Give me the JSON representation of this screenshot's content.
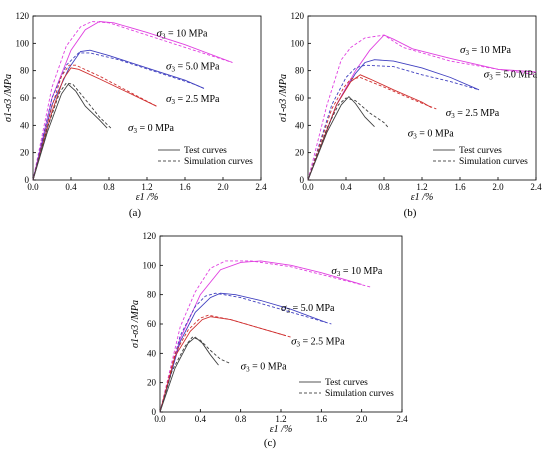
{
  "chart_data": [
    {
      "type": "line",
      "panel_label": "(a)",
      "xlabel": "ε1 /%",
      "ylabel": "σ1-σ3 /MPa",
      "xlim": [
        0,
        2.4
      ],
      "ylim": [
        0,
        120
      ],
      "xticks": [
        "0.0",
        "0.4",
        "0.8",
        "1.2",
        "1.6",
        "2.0",
        "2.4"
      ],
      "yticks": [
        "0",
        "20",
        "40",
        "60",
        "80",
        "100",
        "120"
      ],
      "legend": {
        "position": "lower-right",
        "test": "Test curves",
        "simulation": "Simulation curves"
      },
      "series": [
        {
          "name": "σ3 = 10 MPa",
          "color": "#e040e0",
          "label_pos": [
            1.3,
            105
          ],
          "test": [
            [
              0,
              0
            ],
            [
              0.2,
              60
            ],
            [
              0.4,
              95
            ],
            [
              0.55,
              110
            ],
            [
              0.7,
              116
            ],
            [
              0.85,
              115
            ],
            [
              1.2,
              108
            ],
            [
              1.6,
              99
            ],
            [
              2.1,
              86
            ]
          ],
          "sim": [
            [
              0,
              0
            ],
            [
              0.2,
              68
            ],
            [
              0.35,
              98
            ],
            [
              0.5,
              112
            ],
            [
              0.62,
              116
            ],
            [
              0.8,
              115
            ],
            [
              1.2,
              106
            ],
            [
              1.6,
              97
            ],
            [
              2.1,
              86
            ]
          ]
        },
        {
          "name": "σ3 = 5.0 MPa",
          "color": "#4040c0",
          "label_pos": [
            1.4,
            81
          ],
          "test": [
            [
              0,
              0
            ],
            [
              0.2,
              55
            ],
            [
              0.38,
              82
            ],
            [
              0.5,
              94
            ],
            [
              0.6,
              95
            ],
            [
              0.8,
              91
            ],
            [
              1.2,
              82
            ],
            [
              1.6,
              73
            ],
            [
              1.8,
              67
            ]
          ],
          "sim": [
            [
              0,
              0
            ],
            [
              0.2,
              60
            ],
            [
              0.35,
              84
            ],
            [
              0.48,
              93
            ],
            [
              0.6,
              93
            ],
            [
              0.9,
              88
            ],
            [
              1.3,
              79
            ],
            [
              1.7,
              70
            ],
            [
              1.8,
              67
            ]
          ]
        },
        {
          "name": "σ3 = 2.5 MPa",
          "color": "#d03030",
          "label_pos": [
            1.4,
            57
          ],
          "test": [
            [
              0,
              0
            ],
            [
              0.2,
              50
            ],
            [
              0.32,
              74
            ],
            [
              0.4,
              82
            ],
            [
              0.48,
              81
            ],
            [
              0.7,
              74
            ],
            [
              1.0,
              64
            ],
            [
              1.3,
              54
            ]
          ],
          "sim": [
            [
              0,
              0
            ],
            [
              0.2,
              54
            ],
            [
              0.3,
              76
            ],
            [
              0.38,
              84
            ],
            [
              0.45,
              84
            ],
            [
              0.7,
              76
            ],
            [
              1.0,
              65
            ],
            [
              1.3,
              54
            ]
          ]
        },
        {
          "name": "σ3 = 0 MPa",
          "color": "#404040",
          "label_pos": [
            1.0,
            36
          ],
          "test": [
            [
              0,
              0
            ],
            [
              0.15,
              35
            ],
            [
              0.3,
              63
            ],
            [
              0.37,
              70
            ],
            [
              0.45,
              65
            ],
            [
              0.55,
              54
            ],
            [
              0.7,
              44
            ],
            [
              0.78,
              38
            ]
          ],
          "sim": [
            [
              0,
              0
            ],
            [
              0.15,
              38
            ],
            [
              0.28,
              64
            ],
            [
              0.35,
              71
            ],
            [
              0.42,
              70
            ],
            [
              0.55,
              59
            ],
            [
              0.7,
              46
            ],
            [
              0.82,
              38
            ]
          ]
        }
      ]
    },
    {
      "type": "line",
      "panel_label": "(b)",
      "xlabel": "ε1 /%",
      "ylabel": "σ1-σ3 /MPa",
      "xlim": [
        0,
        2.4
      ],
      "ylim": [
        0,
        120
      ],
      "xticks": [
        "0.0",
        "0.4",
        "0.8",
        "1.2",
        "1.6",
        "2.0",
        "2.4"
      ],
      "yticks": [
        "0",
        "20",
        "40",
        "60",
        "80",
        "100",
        "120"
      ],
      "legend": {
        "position": "lower-right",
        "test": "Test curves",
        "simulation": "Simulation curves"
      },
      "series": [
        {
          "name": "σ3 = 10 MPa",
          "color": "#e040e0",
          "label_pos": [
            1.6,
            93
          ],
          "test": [
            [
              0,
              0
            ],
            [
              0.3,
              55
            ],
            [
              0.5,
              80
            ],
            [
              0.65,
              95
            ],
            [
              0.8,
              106
            ],
            [
              0.9,
              103
            ],
            [
              1.1,
              96
            ],
            [
              1.5,
              89
            ],
            [
              2.0,
              81
            ],
            [
              2.4,
              79
            ]
          ],
          "sim": [
            [
              0,
              0
            ],
            [
              0.2,
              55
            ],
            [
              0.35,
              88
            ],
            [
              0.45,
              97
            ],
            [
              0.6,
              104
            ],
            [
              0.8,
              106
            ],
            [
              1.0,
              97
            ],
            [
              1.5,
              87
            ],
            [
              2.0,
              81
            ],
            [
              2.4,
              77
            ]
          ]
        },
        {
          "name": "σ3 = 5.0 MPa",
          "color": "#4040c0",
          "label_pos": [
            1.85,
            75
          ],
          "test": [
            [
              0,
              0
            ],
            [
              0.3,
              55
            ],
            [
              0.5,
              78
            ],
            [
              0.6,
              86
            ],
            [
              0.7,
              88
            ],
            [
              0.9,
              87
            ],
            [
              1.2,
              82
            ],
            [
              1.5,
              75
            ],
            [
              1.8,
              66
            ]
          ],
          "sim": [
            [
              0,
              0
            ],
            [
              0.25,
              55
            ],
            [
              0.4,
              75
            ],
            [
              0.5,
              82
            ],
            [
              0.6,
              84
            ],
            [
              0.9,
              83
            ],
            [
              1.2,
              77
            ],
            [
              1.5,
              72
            ],
            [
              1.8,
              66
            ]
          ]
        },
        {
          "name": "σ3 = 2.5 MPa",
          "color": "#d03030",
          "label_pos": [
            1.45,
            47
          ],
          "test": [
            [
              0,
              0
            ],
            [
              0.3,
              55
            ],
            [
              0.45,
              72
            ],
            [
              0.55,
              77
            ],
            [
              0.65,
              74
            ],
            [
              0.9,
              66
            ],
            [
              1.2,
              57
            ],
            [
              1.3,
              53
            ]
          ],
          "sim": [
            [
              0,
              0
            ],
            [
              0.25,
              52
            ],
            [
              0.38,
              68
            ],
            [
              0.45,
              74
            ],
            [
              0.55,
              75
            ],
            [
              0.8,
              68
            ],
            [
              1.1,
              59
            ],
            [
              1.35,
              52
            ]
          ]
        },
        {
          "name": "σ3 = 0 MPa",
          "color": "#404040",
          "label_pos": [
            1.05,
            32
          ],
          "test": [
            [
              0,
              0
            ],
            [
              0.2,
              35
            ],
            [
              0.35,
              55
            ],
            [
              0.43,
              61
            ],
            [
              0.5,
              56
            ],
            [
              0.6,
              46
            ],
            [
              0.7,
              39
            ]
          ],
          "sim": [
            [
              0,
              0
            ],
            [
              0.2,
              38
            ],
            [
              0.32,
              55
            ],
            [
              0.4,
              60
            ],
            [
              0.5,
              58
            ],
            [
              0.65,
              49
            ],
            [
              0.8,
              42
            ],
            [
              0.85,
              38
            ]
          ]
        }
      ]
    },
    {
      "type": "line",
      "panel_label": "(c)",
      "xlabel": "ε1 /%",
      "ylabel": "σ1-σ3 /MPa",
      "xlim": [
        0,
        2.4
      ],
      "ylim": [
        0,
        120
      ],
      "xticks": [
        "0.0",
        "0.4",
        "0.8",
        "1.2",
        "1.6",
        "2.0",
        "2.4"
      ],
      "yticks": [
        "0",
        "20",
        "40",
        "60",
        "80",
        "100",
        "120"
      ],
      "legend": {
        "position": "lower-right",
        "test": "Test curves",
        "simulation": "Simulation curves"
      },
      "series": [
        {
          "name": "σ3 = 10 MPa",
          "color": "#e040e0",
          "label_pos": [
            1.7,
            94
          ],
          "test": [
            [
              0,
              0
            ],
            [
              0.2,
              50
            ],
            [
              0.4,
              80
            ],
            [
              0.6,
              97
            ],
            [
              0.8,
              102
            ],
            [
              1.0,
              103
            ],
            [
              1.3,
              100
            ],
            [
              1.6,
              95
            ],
            [
              2.0,
              87
            ]
          ],
          "sim": [
            [
              0,
              0
            ],
            [
              0.2,
              58
            ],
            [
              0.35,
              82
            ],
            [
              0.5,
              98
            ],
            [
              0.65,
              103
            ],
            [
              0.9,
              103
            ],
            [
              1.3,
              99
            ],
            [
              1.7,
              92
            ],
            [
              2.1,
              85
            ]
          ]
        },
        {
          "name": "σ3 = 5.0 MPa",
          "color": "#4040c0",
          "label_pos": [
            1.2,
            69
          ],
          "test": [
            [
              0,
              0
            ],
            [
              0.2,
              48
            ],
            [
              0.35,
              68
            ],
            [
              0.5,
              78
            ],
            [
              0.6,
              81
            ],
            [
              0.75,
              80
            ],
            [
              1.0,
              76
            ],
            [
              1.3,
              70
            ],
            [
              1.65,
              61
            ]
          ],
          "sim": [
            [
              0,
              0
            ],
            [
              0.2,
              52
            ],
            [
              0.35,
              72
            ],
            [
              0.45,
              79
            ],
            [
              0.55,
              81
            ],
            [
              0.8,
              78
            ],
            [
              1.1,
              72
            ],
            [
              1.4,
              66
            ],
            [
              1.7,
              60
            ]
          ]
        },
        {
          "name": "σ3 = 2.5 MPa",
          "color": "#d03030",
          "label_pos": [
            1.3,
            46
          ],
          "test": [
            [
              0,
              0
            ],
            [
              0.15,
              38
            ],
            [
              0.3,
              55
            ],
            [
              0.42,
              63
            ],
            [
              0.5,
              65
            ],
            [
              0.7,
              63
            ],
            [
              0.9,
              59
            ],
            [
              1.25,
              52
            ]
          ],
          "sim": [
            [
              0,
              0
            ],
            [
              0.15,
              40
            ],
            [
              0.28,
              56
            ],
            [
              0.4,
              64
            ],
            [
              0.48,
              66
            ],
            [
              0.7,
              63
            ],
            [
              0.95,
              58
            ],
            [
              1.3,
              51
            ]
          ]
        },
        {
          "name": "σ3 = 0 MPa",
          "color": "#404040",
          "label_pos": [
            0.8,
            29
          ],
          "test": [
            [
              0,
              0
            ],
            [
              0.15,
              30
            ],
            [
              0.28,
              47
            ],
            [
              0.35,
              51
            ],
            [
              0.42,
              47
            ],
            [
              0.5,
              39
            ],
            [
              0.58,
              32
            ]
          ],
          "sim": [
            [
              0,
              0
            ],
            [
              0.12,
              28
            ],
            [
              0.25,
              45
            ],
            [
              0.32,
              51
            ],
            [
              0.4,
              49
            ],
            [
              0.5,
              42
            ],
            [
              0.6,
              36
            ],
            [
              0.7,
              33
            ]
          ]
        }
      ]
    }
  ]
}
